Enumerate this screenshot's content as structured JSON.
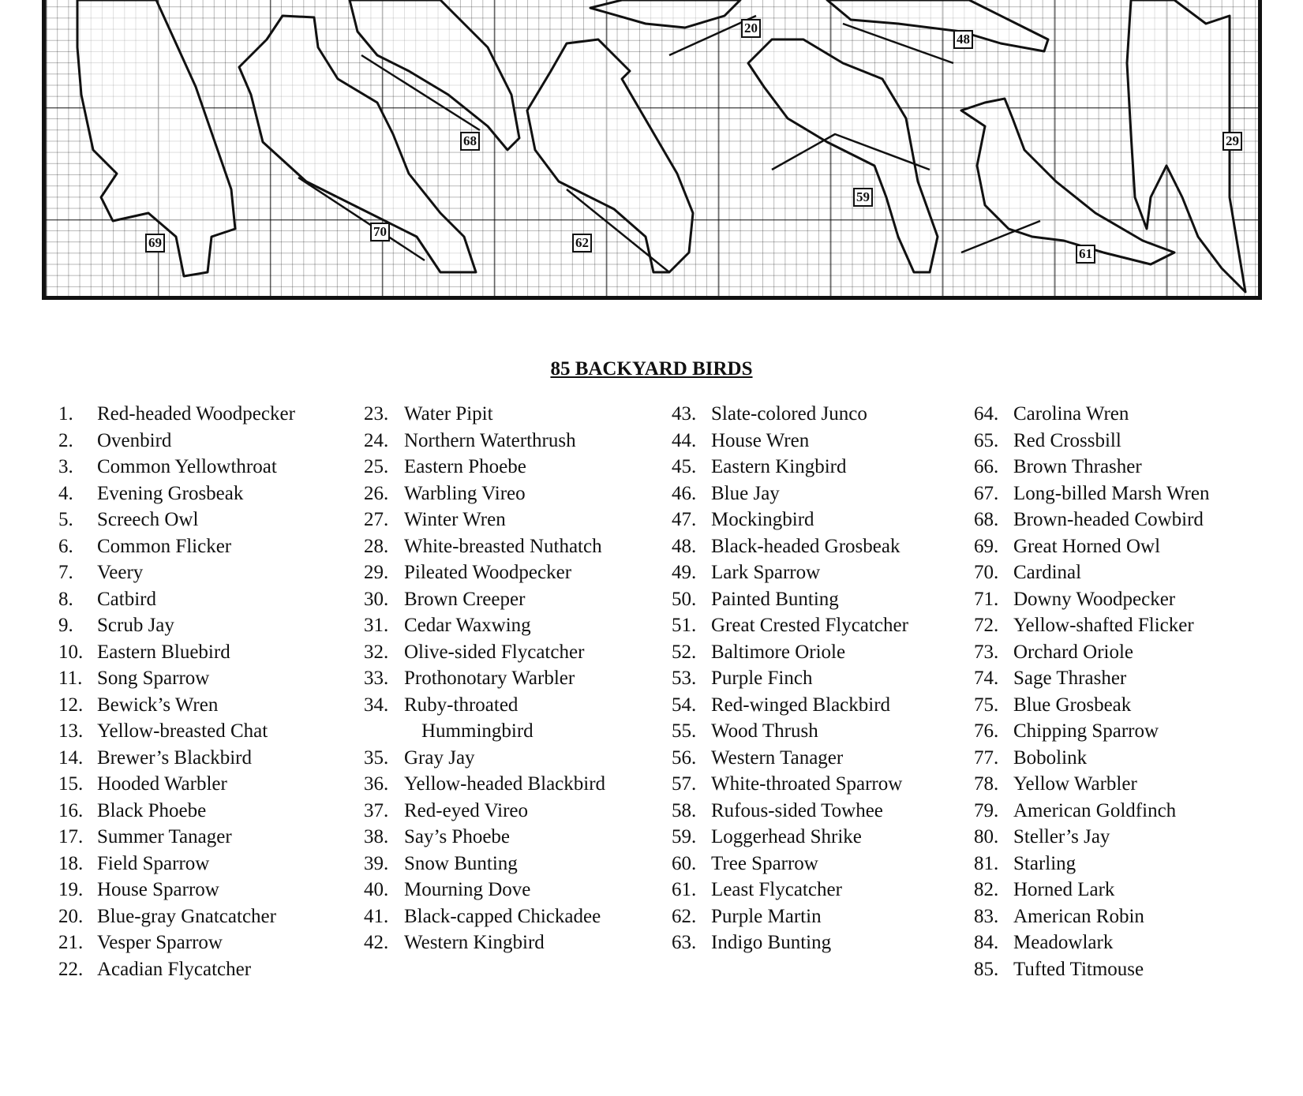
{
  "chart": {
    "labels": [
      "69",
      "70",
      "68",
      "62",
      "20",
      "48",
      "59",
      "61",
      "29"
    ]
  },
  "title": "85 BACKYARD BIRDS",
  "columns": [
    [
      {
        "n": "1.",
        "name": "Red-headed Woodpecker"
      },
      {
        "n": "2.",
        "name": "Ovenbird"
      },
      {
        "n": "3.",
        "name": "Common Yellowthroat"
      },
      {
        "n": "4.",
        "name": "Evening Grosbeak"
      },
      {
        "n": "5.",
        "name": "Screech Owl"
      },
      {
        "n": "6.",
        "name": "Common Flicker"
      },
      {
        "n": "7.",
        "name": "Veery"
      },
      {
        "n": "8.",
        "name": "Catbird"
      },
      {
        "n": "9.",
        "name": "Scrub Jay"
      },
      {
        "n": "10.",
        "name": "Eastern Bluebird"
      },
      {
        "n": "11.",
        "name": "Song Sparrow"
      },
      {
        "n": "12.",
        "name": "Bewick’s Wren"
      },
      {
        "n": "13.",
        "name": "Yellow-breasted Chat"
      },
      {
        "n": "14.",
        "name": "Brewer’s Blackbird"
      },
      {
        "n": "15.",
        "name": "Hooded Warbler"
      },
      {
        "n": "16.",
        "name": "Black Phoebe"
      },
      {
        "n": "17.",
        "name": "Summer Tanager"
      },
      {
        "n": "18.",
        "name": "Field Sparrow"
      },
      {
        "n": "19.",
        "name": "House Sparrow"
      },
      {
        "n": "20.",
        "name": "Blue-gray Gnatcatcher"
      },
      {
        "n": "21.",
        "name": "Vesper Sparrow"
      },
      {
        "n": "22.",
        "name": "Acadian Flycatcher"
      }
    ],
    [
      {
        "n": "23.",
        "name": "Water Pipit"
      },
      {
        "n": "24.",
        "name": "Northern Waterthrush"
      },
      {
        "n": "25.",
        "name": "Eastern Phoebe"
      },
      {
        "n": "26.",
        "name": "Warbling Vireo"
      },
      {
        "n": "27.",
        "name": "Winter Wren"
      },
      {
        "n": "28.",
        "name": "White-breasted Nuthatch"
      },
      {
        "n": "29.",
        "name": "Pileated Woodpecker"
      },
      {
        "n": "30.",
        "name": "Brown Creeper"
      },
      {
        "n": "31.",
        "name": "Cedar Waxwing"
      },
      {
        "n": "32.",
        "name": "Olive-sided Flycatcher"
      },
      {
        "n": "33.",
        "name": "Prothonotary Warbler"
      },
      {
        "n": "34.",
        "name": "Ruby-throated"
      },
      {
        "n": "",
        "name": "Hummingbird",
        "cont": true
      },
      {
        "n": "35.",
        "name": "Gray Jay"
      },
      {
        "n": "36.",
        "name": "Yellow-headed Blackbird"
      },
      {
        "n": "37.",
        "name": "Red-eyed Vireo"
      },
      {
        "n": "38.",
        "name": "Say’s Phoebe"
      },
      {
        "n": "39.",
        "name": "Snow Bunting"
      },
      {
        "n": "40.",
        "name": "Mourning Dove"
      },
      {
        "n": "41.",
        "name": "Black-capped Chickadee"
      },
      {
        "n": "42.",
        "name": "Western Kingbird"
      }
    ],
    [
      {
        "n": "43.",
        "name": "Slate-colored Junco"
      },
      {
        "n": "44.",
        "name": "House Wren"
      },
      {
        "n": "45.",
        "name": "Eastern Kingbird"
      },
      {
        "n": "46.",
        "name": "Blue Jay"
      },
      {
        "n": "47.",
        "name": "Mockingbird"
      },
      {
        "n": "48.",
        "name": "Black-headed Grosbeak"
      },
      {
        "n": "49.",
        "name": "Lark Sparrow"
      },
      {
        "n": "50.",
        "name": "Painted Bunting"
      },
      {
        "n": "51.",
        "name": "Great Crested Flycatcher"
      },
      {
        "n": "52.",
        "name": "Baltimore Oriole"
      },
      {
        "n": "53.",
        "name": "Purple Finch"
      },
      {
        "n": "54.",
        "name": "Red-winged Blackbird"
      },
      {
        "n": "55.",
        "name": "Wood Thrush"
      },
      {
        "n": "56.",
        "name": "Western Tanager"
      },
      {
        "n": "57.",
        "name": "White-throated Sparrow"
      },
      {
        "n": "58.",
        "name": "Rufous-sided Towhee"
      },
      {
        "n": "59.",
        "name": "Loggerhead Shrike"
      },
      {
        "n": "60.",
        "name": "Tree Sparrow"
      },
      {
        "n": "61.",
        "name": "Least Flycatcher"
      },
      {
        "n": "62.",
        "name": "Purple Martin"
      },
      {
        "n": "63.",
        "name": "Indigo Bunting"
      }
    ],
    [
      {
        "n": "64.",
        "name": "Carolina Wren"
      },
      {
        "n": "65.",
        "name": "Red Crossbill"
      },
      {
        "n": "66.",
        "name": "Brown Thrasher"
      },
      {
        "n": "67.",
        "name": "Long-billed Marsh Wren"
      },
      {
        "n": "68.",
        "name": "Brown-headed Cowbird"
      },
      {
        "n": "69.",
        "name": "Great Horned Owl"
      },
      {
        "n": "70.",
        "name": "Cardinal"
      },
      {
        "n": "71.",
        "name": "Downy Woodpecker"
      },
      {
        "n": "72.",
        "name": "Yellow-shafted Flicker"
      },
      {
        "n": "73.",
        "name": "Orchard Oriole"
      },
      {
        "n": "74.",
        "name": "Sage Thrasher"
      },
      {
        "n": "75.",
        "name": "Blue Grosbeak"
      },
      {
        "n": "76.",
        "name": "Chipping Sparrow"
      },
      {
        "n": "77.",
        "name": "Bobolink"
      },
      {
        "n": "78.",
        "name": "Yellow Warbler"
      },
      {
        "n": "79.",
        "name": "American Goldfinch"
      },
      {
        "n": "80.",
        "name": "Steller’s Jay"
      },
      {
        "n": "81.",
        "name": "Starling"
      },
      {
        "n": "82.",
        "name": "Horned Lark"
      },
      {
        "n": "83.",
        "name": "American Robin"
      },
      {
        "n": "84.",
        "name": "Meadowlark"
      },
      {
        "n": "85.",
        "name": "Tufted Titmouse"
      }
    ]
  ]
}
